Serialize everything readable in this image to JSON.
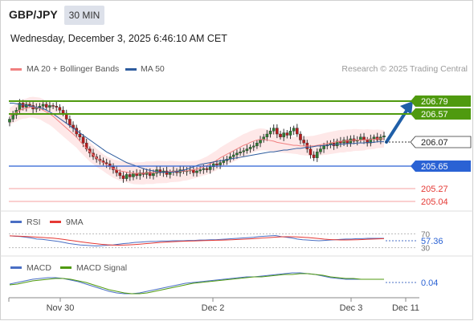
{
  "header": {
    "pair": "GBP/JPY",
    "timeframe": "30 MIN",
    "datetime": "Wednesday, December 3, 2025 6:46:10 AM CET"
  },
  "legend": {
    "ma20": "MA 20 + Bollinger Bands",
    "ma50": "MA 50",
    "credit": "Research © 2025 Trading Central",
    "ma20_color": "#f08080",
    "ma50_color": "#2e5c9e"
  },
  "levels": [
    {
      "value": "206.79",
      "kind": "resistance",
      "color": "#4f9a0f"
    },
    {
      "value": "206.57",
      "kind": "resistance",
      "color": "#4f9a0f"
    },
    {
      "value": "206.07",
      "kind": "last",
      "color": "#222222"
    },
    {
      "value": "205.65",
      "kind": "pivot",
      "color": "#2a62d4"
    },
    {
      "value": "205.27",
      "kind": "support",
      "color": "#e53935"
    },
    {
      "value": "205.04",
      "kind": "support",
      "color": "#e53935"
    }
  ],
  "rsi_panel": {
    "label": "RSI",
    "signal_label": "9MA",
    "value": "57.36",
    "upper": "70",
    "lower": "30"
  },
  "macd_panel": {
    "label": "MACD",
    "signal_label": "MACD Signal",
    "value": "0.04"
  },
  "x_axis": {
    "ticks": [
      "Nov 30",
      "Dec 2",
      "Dec 3",
      "Dec 11"
    ]
  },
  "chart_data": {
    "type": "candlestick",
    "ylim": [
      204.9,
      206.95
    ],
    "close": [
      206.35,
      206.42,
      206.5,
      206.62,
      206.55,
      206.6,
      206.58,
      206.52,
      206.55,
      206.57,
      206.6,
      206.55,
      206.58,
      206.57,
      206.55,
      206.5,
      206.45,
      206.35,
      206.25,
      206.2,
      206.1,
      206.05,
      205.95,
      205.85,
      205.78,
      205.72,
      205.68,
      205.65,
      205.62,
      205.6,
      205.55,
      205.5,
      205.45,
      205.4,
      205.35,
      205.42,
      205.38,
      205.44,
      205.4,
      205.45,
      205.42,
      205.46,
      205.4,
      205.44,
      205.5,
      205.45,
      205.48,
      205.42,
      205.46,
      205.48,
      205.45,
      205.5,
      205.47,
      205.48,
      205.5,
      205.45,
      205.48,
      205.5,
      205.52,
      205.5,
      205.55,
      205.6,
      205.58,
      205.62,
      205.65,
      205.68,
      205.72,
      205.75,
      205.78,
      205.8,
      205.82,
      205.85,
      205.88,
      205.9,
      205.95,
      206.0,
      206.05,
      206.1,
      206.15,
      206.2,
      206.1,
      206.05,
      206.12,
      206.08,
      206.15,
      206.2,
      206.1,
      206.0,
      205.95,
      205.85,
      205.75,
      205.7,
      205.8,
      205.85,
      205.9,
      205.92,
      205.95,
      205.9,
      205.98,
      205.95,
      206.0,
      205.95,
      206.02,
      205.98,
      206.0,
      206.05,
      206.0,
      205.95,
      206.02,
      206.05,
      206.0,
      206.05,
      206.07
    ],
    "ma20": [
      206.4,
      206.43,
      206.46,
      206.5,
      206.52,
      206.53,
      206.55,
      206.55,
      206.54,
      206.53,
      206.5,
      206.47,
      206.44,
      206.4,
      206.35,
      206.3,
      206.25,
      206.2,
      206.15,
      206.1,
      206.05,
      205.98,
      205.92,
      205.86,
      205.8,
      205.75,
      205.7,
      205.66,
      205.62,
      205.58,
      205.55,
      205.52,
      205.5,
      205.48,
      205.47,
      205.46,
      205.45,
      205.44,
      205.44,
      205.44,
      205.44,
      205.45,
      205.45,
      205.45,
      205.46,
      205.46,
      205.46,
      205.46,
      205.47,
      205.47,
      205.47,
      205.47,
      205.48,
      205.48,
      205.49,
      205.5,
      205.51,
      205.53,
      205.55,
      205.57,
      205.6,
      205.63,
      205.66,
      205.7,
      205.73,
      205.76,
      205.79,
      205.82,
      205.85,
      205.88,
      205.91,
      205.93,
      205.96,
      205.98,
      206.0,
      206.01,
      206.01,
      206.0,
      205.99,
      205.98,
      205.96,
      205.95,
      205.94,
      205.93,
      205.92,
      205.91,
      205.91,
      205.9,
      205.9,
      205.9,
      205.9,
      205.9,
      205.91,
      205.92,
      205.93,
      205.94,
      205.95,
      205.96,
      205.97,
      205.98,
      205.98,
      205.99,
      205.99,
      206.0,
      206.0,
      206.0,
      206.0,
      206.01,
      206.01,
      206.01,
      206.02,
      206.02,
      206.02
    ],
    "ma50": [
      206.62,
      206.62,
      206.61,
      206.6,
      206.59,
      206.58,
      206.57,
      206.56,
      206.55,
      206.54,
      206.53,
      206.5,
      206.47,
      206.44,
      206.4,
      206.36,
      206.32,
      206.28,
      206.24,
      206.2,
      206.16,
      206.12,
      206.08,
      206.04,
      206.0,
      205.96,
      205.92,
      205.88,
      205.84,
      205.8,
      205.77,
      205.74,
      205.71,
      205.68,
      205.65,
      205.62,
      205.6,
      205.58,
      205.56,
      205.54,
      205.52,
      205.5,
      205.49,
      205.48,
      205.47,
      205.46,
      205.46,
      205.46,
      205.46,
      205.46,
      205.47,
      205.48,
      205.49,
      205.51,
      205.53,
      205.55,
      205.57,
      205.59,
      205.6,
      205.61,
      205.62,
      205.63,
      205.64,
      205.65,
      205.66,
      205.67,
      205.68,
      205.69,
      205.7,
      205.71,
      205.72,
      205.73,
      205.74,
      205.75,
      205.76,
      205.77,
      205.78,
      205.79,
      205.8,
      205.8,
      205.81,
      205.82,
      205.83,
      205.83,
      205.84,
      205.85,
      205.86,
      205.86,
      205.87,
      205.88,
      205.88,
      205.89,
      205.9,
      205.9,
      205.91,
      205.91,
      205.92,
      205.92,
      205.93,
      205.93,
      205.93,
      205.94,
      205.94,
      205.94,
      205.95,
      205.95,
      205.95,
      205.96,
      205.96,
      205.96,
      205.97,
      205.97,
      205.97
    ],
    "rsi": [
      64,
      63,
      62,
      60,
      58,
      55,
      54,
      52,
      50,
      48,
      45,
      42,
      40,
      38,
      37,
      36,
      35,
      36,
      37,
      38,
      40,
      42,
      43,
      45,
      46,
      47,
      48,
      48,
      49,
      49,
      50,
      50,
      50,
      51,
      51,
      52,
      52,
      53,
      53,
      54,
      55,
      56,
      57,
      58,
      59,
      60,
      62,
      63,
      64,
      65,
      62,
      60,
      58,
      55,
      53,
      52,
      51,
      50,
      51,
      52,
      53,
      54,
      55,
      55,
      56,
      56,
      57,
      57,
      57,
      57
    ],
    "macd": [
      -0.02,
      0.0,
      0.02,
      0.04,
      0.05,
      0.06,
      0.06,
      0.05,
      0.03,
      0.01,
      -0.02,
      -0.05,
      -0.08,
      -0.11,
      -0.13,
      -0.14,
      -0.14,
      -0.13,
      -0.11,
      -0.09,
      -0.07,
      -0.05,
      -0.03,
      -0.01,
      0.0,
      0.01,
      0.02,
      0.03,
      0.04,
      0.05,
      0.06,
      0.07,
      0.07,
      0.08,
      0.09,
      0.1,
      0.11,
      0.12,
      0.12,
      0.11,
      0.1,
      0.08,
      0.06,
      0.05,
      0.04,
      0.04,
      0.04,
      0.04,
      0.04,
      0.04
    ],
    "macd_signal": [
      -0.03,
      -0.02,
      0.0,
      0.02,
      0.03,
      0.04,
      0.05,
      0.05,
      0.04,
      0.02,
      0.0,
      -0.03,
      -0.06,
      -0.09,
      -0.11,
      -0.13,
      -0.14,
      -0.14,
      -0.13,
      -0.11,
      -0.09,
      -0.07,
      -0.05,
      -0.03,
      -0.01,
      0.0,
      0.01,
      0.02,
      0.03,
      0.04,
      0.05,
      0.06,
      0.07,
      0.07,
      0.08,
      0.09,
      0.1,
      0.1,
      0.11,
      0.11,
      0.1,
      0.09,
      0.07,
      0.06,
      0.05,
      0.05,
      0.04,
      0.04,
      0.04,
      0.04
    ]
  }
}
